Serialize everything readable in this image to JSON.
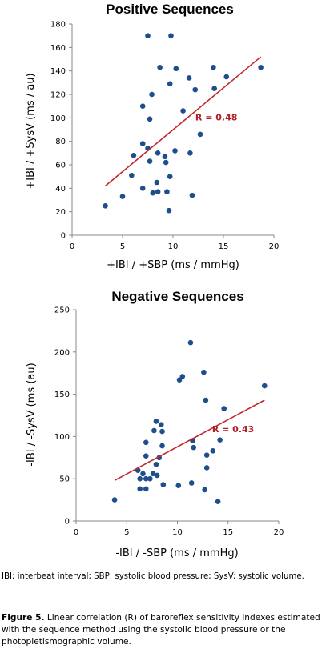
{
  "chart_data": [
    {
      "type": "scatter",
      "title": "Positive Sequences",
      "xlabel": "+IBI / +SBP (ms / mmHg)",
      "ylabel": "+IBI / +SysV (ms / au)",
      "xlim": [
        0,
        20
      ],
      "ylim": [
        0,
        180
      ],
      "xticks": [
        "0",
        "5",
        "10",
        "15",
        "20"
      ],
      "yticks": [
        "0",
        "20",
        "40",
        "60",
        "80",
        "100",
        "120",
        "140",
        "160",
        "180"
      ],
      "grid": false,
      "trendline": {
        "x1": 3.3,
        "y1": 42,
        "x2": 18.7,
        "y2": 152
      },
      "annotation": "R = 0.48",
      "points": [
        [
          7.5,
          170
        ],
        [
          9.8,
          170
        ],
        [
          8.7,
          143
        ],
        [
          10.3,
          142
        ],
        [
          14.0,
          143
        ],
        [
          18.7,
          143
        ],
        [
          11.6,
          134
        ],
        [
          15.3,
          135
        ],
        [
          9.7,
          129
        ],
        [
          12.2,
          124
        ],
        [
          14.1,
          125
        ],
        [
          7.9,
          120
        ],
        [
          7.0,
          110
        ],
        [
          11.0,
          106
        ],
        [
          7.7,
          99
        ],
        [
          12.7,
          86
        ],
        [
          7.0,
          78
        ],
        [
          7.5,
          74
        ],
        [
          10.2,
          72
        ],
        [
          11.7,
          70
        ],
        [
          8.5,
          70
        ],
        [
          6.1,
          68
        ],
        [
          9.2,
          67
        ],
        [
          7.7,
          63
        ],
        [
          9.3,
          62
        ],
        [
          5.9,
          51
        ],
        [
          9.7,
          50
        ],
        [
          8.4,
          45
        ],
        [
          7.0,
          40
        ],
        [
          8.5,
          37
        ],
        [
          9.4,
          37
        ],
        [
          8.0,
          36
        ],
        [
          11.9,
          34
        ],
        [
          5.0,
          33
        ],
        [
          3.3,
          25
        ],
        [
          9.6,
          21
        ]
      ]
    },
    {
      "type": "scatter",
      "title": "Negative Sequences",
      "xlabel": "-IBI / -SBP (ms / mmHg)",
      "ylabel": "-IBI / -SysV (ms (au)",
      "xlim": [
        0,
        20
      ],
      "ylim": [
        0,
        250
      ],
      "xticks": [
        "0",
        "5",
        "10",
        "15",
        "20"
      ],
      "yticks": [
        "0",
        "50",
        "100",
        "150",
        "200",
        "250"
      ],
      "grid": false,
      "trendline": {
        "x1": 3.8,
        "y1": 48,
        "x2": 18.6,
        "y2": 143
      },
      "annotation": "R = 0.43",
      "points": [
        [
          11.3,
          211
        ],
        [
          12.6,
          176
        ],
        [
          10.5,
          171
        ],
        [
          10.2,
          167
        ],
        [
          18.6,
          160
        ],
        [
          12.8,
          143
        ],
        [
          14.6,
          133
        ],
        [
          7.9,
          118
        ],
        [
          8.4,
          114
        ],
        [
          7.7,
          107
        ],
        [
          8.5,
          106
        ],
        [
          14.2,
          96
        ],
        [
          11.5,
          95
        ],
        [
          6.9,
          93
        ],
        [
          11.6,
          87
        ],
        [
          8.5,
          89
        ],
        [
          13.5,
          83
        ],
        [
          12.9,
          78
        ],
        [
          6.9,
          77
        ],
        [
          8.2,
          75
        ],
        [
          7.9,
          67
        ],
        [
          12.9,
          63
        ],
        [
          6.1,
          60
        ],
        [
          6.6,
          56
        ],
        [
          7.6,
          56
        ],
        [
          8.0,
          54
        ],
        [
          6.3,
          50
        ],
        [
          6.9,
          50
        ],
        [
          7.3,
          50
        ],
        [
          8.6,
          43
        ],
        [
          10.1,
          42
        ],
        [
          11.4,
          45
        ],
        [
          6.3,
          38
        ],
        [
          6.9,
          38
        ],
        [
          12.7,
          37
        ],
        [
          3.8,
          25
        ],
        [
          14.0,
          23
        ]
      ]
    }
  ],
  "abbreviations": "IBI: interbeat interval; SBP: systolic blood pressure; SysV: systolic volume.",
  "caption": {
    "label": "Figure 5.",
    "text": "Linear correlation (R) of baroreflex sensitivity indexes estimated with the sequence method using the systolic blood pressure or the photopletismographic volume."
  },
  "colors": {
    "points": "#1f4e8c",
    "trend": "#c0282d",
    "annotation": "#b0202a"
  }
}
